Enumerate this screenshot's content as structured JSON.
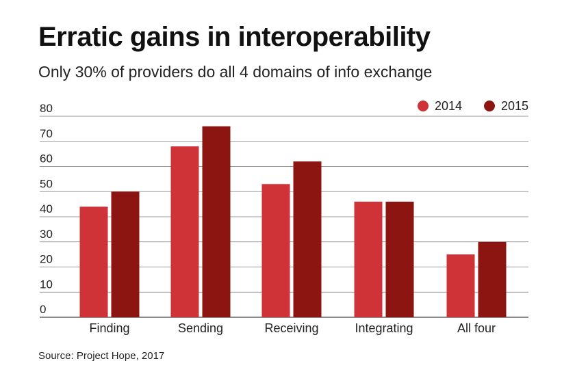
{
  "chart_data": {
    "type": "bar",
    "title": "Erratic gains in interoperability",
    "subtitle": "Only 30% of providers do all 4 domains of info exchange",
    "source": "Source: Project Hope, 2017",
    "categories": [
      "Finding",
      "Sending",
      "Receiving",
      "Integrating",
      "All four"
    ],
    "series": [
      {
        "name": "2014",
        "values": [
          44,
          68,
          53,
          46,
          25
        ],
        "color": "#d03337"
      },
      {
        "name": "2015",
        "values": [
          50,
          76,
          62,
          46,
          30
        ],
        "color": "#8c1512"
      }
    ],
    "yticks": [
      0,
      10,
      20,
      30,
      40,
      50,
      60,
      70,
      80
    ],
    "ylim": [
      0,
      80
    ],
    "xlabel": "",
    "ylabel": "",
    "grid": true,
    "legend_position": "top-right"
  }
}
